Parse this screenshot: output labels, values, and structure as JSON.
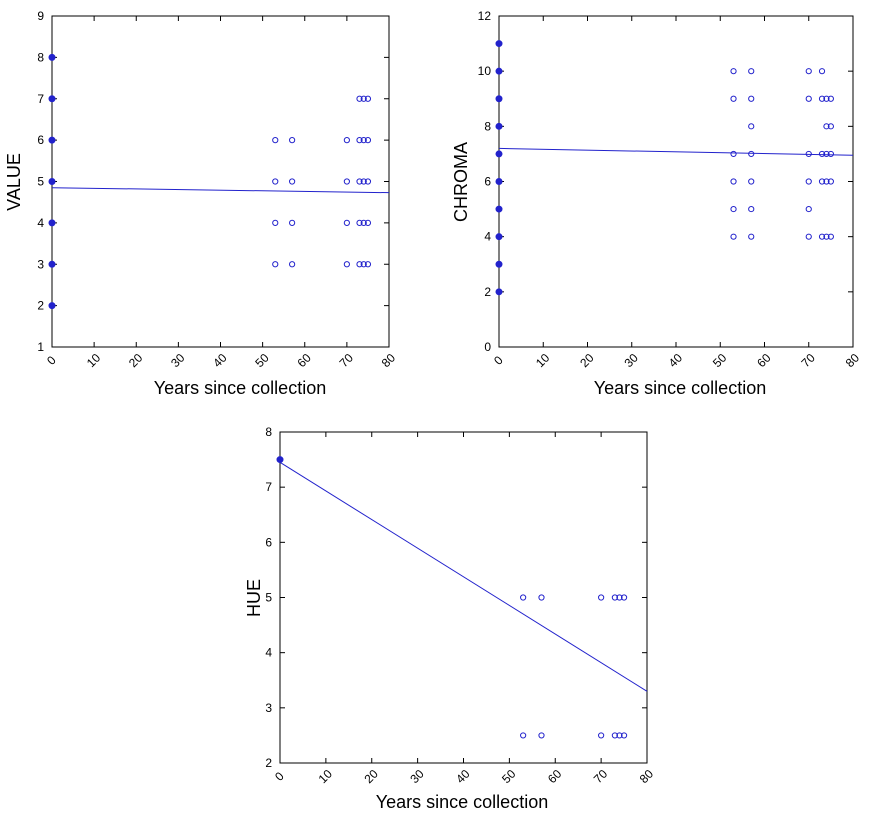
{
  "chart_data": [
    {
      "type": "scatter",
      "xlabel": "Years since collection",
      "ylabel": "VALUE",
      "xlim": [
        0,
        80
      ],
      "ylim": [
        1,
        9
      ],
      "xticks": [
        0,
        10,
        20,
        30,
        40,
        50,
        60,
        70,
        80
      ],
      "yticks": [
        1,
        2,
        3,
        4,
        5,
        6,
        7,
        8,
        9
      ],
      "grid": false,
      "marker_color": "#2222cc",
      "series": [
        {
          "marker": "filled",
          "points": [
            [
              0,
              2
            ],
            [
              0,
              3
            ],
            [
              0,
              4
            ],
            [
              0,
              5
            ],
            [
              0,
              6
            ],
            [
              0,
              7
            ],
            [
              0,
              8
            ]
          ]
        },
        {
          "marker": "open",
          "points": [
            [
              53,
              3
            ],
            [
              53,
              4
            ],
            [
              53,
              5
            ],
            [
              53,
              6
            ],
            [
              57,
              3
            ],
            [
              57,
              4
            ],
            [
              57,
              5
            ],
            [
              57,
              6
            ],
            [
              70,
              3
            ],
            [
              70,
              4
            ],
            [
              70,
              5
            ],
            [
              70,
              6
            ],
            [
              73,
              3
            ],
            [
              73,
              4
            ],
            [
              73,
              5
            ],
            [
              73,
              6
            ],
            [
              73,
              7
            ],
            [
              74,
              3
            ],
            [
              74,
              4
            ],
            [
              74,
              5
            ],
            [
              74,
              6
            ],
            [
              74,
              7
            ],
            [
              75,
              3
            ],
            [
              75,
              4
            ],
            [
              75,
              5
            ],
            [
              75,
              6
            ],
            [
              75,
              7
            ]
          ]
        }
      ],
      "trendline": {
        "x": [
          0,
          80
        ],
        "y": [
          4.85,
          4.73
        ]
      }
    },
    {
      "type": "scatter",
      "xlabel": "Years since collection",
      "ylabel": "CHROMA",
      "xlim": [
        0,
        80
      ],
      "ylim": [
        0,
        12
      ],
      "xticks": [
        0,
        10,
        20,
        30,
        40,
        50,
        60,
        70,
        80
      ],
      "yticks": [
        0,
        2,
        4,
        6,
        8,
        10,
        12
      ],
      "grid": false,
      "marker_color": "#2222cc",
      "series": [
        {
          "marker": "filled",
          "points": [
            [
              0,
              2
            ],
            [
              0,
              3
            ],
            [
              0,
              4
            ],
            [
              0,
              5
            ],
            [
              0,
              6
            ],
            [
              0,
              7
            ],
            [
              0,
              8
            ],
            [
              0,
              9
            ],
            [
              0,
              10
            ],
            [
              0,
              11
            ]
          ]
        },
        {
          "marker": "open",
          "points": [
            [
              53,
              4
            ],
            [
              53,
              5
            ],
            [
              53,
              6
            ],
            [
              53,
              7
            ],
            [
              53,
              9
            ],
            [
              53,
              10
            ],
            [
              57,
              4
            ],
            [
              57,
              5
            ],
            [
              57,
              6
            ],
            [
              57,
              7
            ],
            [
              57,
              8
            ],
            [
              57,
              9
            ],
            [
              57,
              10
            ],
            [
              70,
              4
            ],
            [
              70,
              5
            ],
            [
              70,
              6
            ],
            [
              70,
              7
            ],
            [
              70,
              9
            ],
            [
              70,
              10
            ],
            [
              73,
              4
            ],
            [
              73,
              6
            ],
            [
              73,
              7
            ],
            [
              73,
              9
            ],
            [
              73,
              10
            ],
            [
              74,
              4
            ],
            [
              74,
              6
            ],
            [
              74,
              7
            ],
            [
              74,
              8
            ],
            [
              74,
              9
            ],
            [
              75,
              4
            ],
            [
              75,
              6
            ],
            [
              75,
              7
            ],
            [
              75,
              8
            ],
            [
              75,
              9
            ]
          ]
        }
      ],
      "trendline": {
        "x": [
          0,
          80
        ],
        "y": [
          7.2,
          6.95
        ]
      }
    },
    {
      "type": "scatter",
      "xlabel": "Years since collection",
      "ylabel": "HUE",
      "xlim": [
        0,
        80
      ],
      "ylim": [
        2,
        8
      ],
      "xticks": [
        0,
        10,
        20,
        30,
        40,
        50,
        60,
        70,
        80
      ],
      "yticks": [
        2,
        3,
        4,
        5,
        6,
        7,
        8
      ],
      "grid": false,
      "marker_color": "#2222cc",
      "series": [
        {
          "marker": "filled",
          "points": [
            [
              0,
              7.5
            ]
          ]
        },
        {
          "marker": "open",
          "points": [
            [
              53,
              5
            ],
            [
              53,
              2.5
            ],
            [
              57,
              5
            ],
            [
              57,
              2.5
            ],
            [
              70,
              5
            ],
            [
              70,
              2.5
            ],
            [
              73,
              5
            ],
            [
              73,
              2.5
            ],
            [
              74,
              5
            ],
            [
              74,
              2.5
            ],
            [
              75,
              5
            ],
            [
              75,
              2.5
            ]
          ]
        }
      ],
      "trendline": {
        "x": [
          0,
          80
        ],
        "y": [
          7.45,
          3.3
        ]
      }
    }
  ]
}
